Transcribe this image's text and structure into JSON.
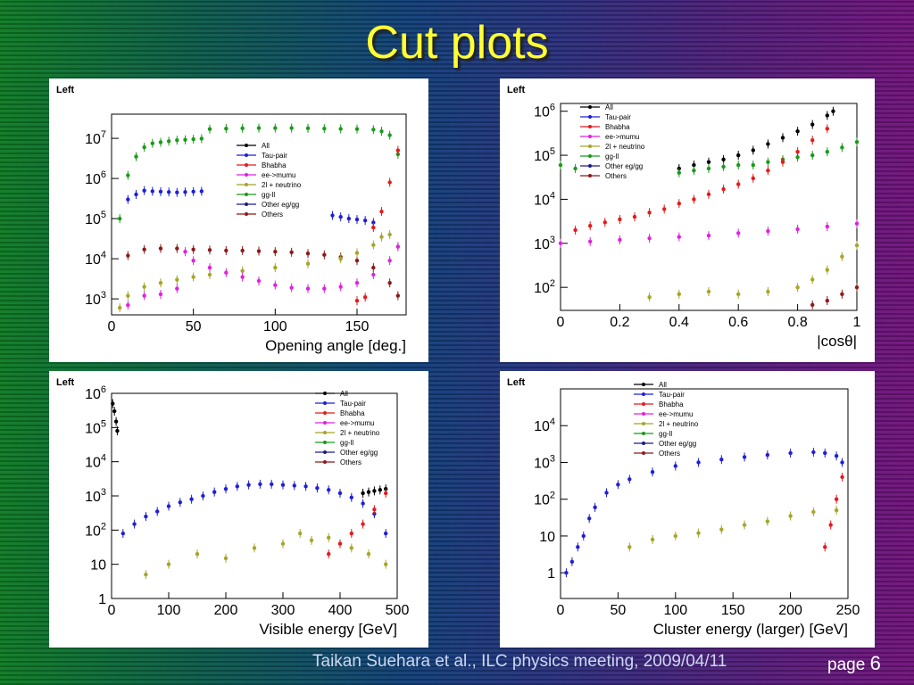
{
  "slide": {
    "title": "Cut plots",
    "footer": "Taikan Suehara et al., ILC physics meeting, 2009/04/11",
    "page_label": "page",
    "page_number": "6"
  },
  "colors": {
    "All": "#000000",
    "Tau-pair": "#1f1fd6",
    "Bhabha": "#e41a1c",
    "ee->mumu": "#e020e0",
    "2l + neutrino": "#a5a52a",
    "gg-ll": "#1a9a1a",
    "Other eg/gg": "#1a1a8a",
    "Others": "#8b1a1a"
  },
  "chart_data": [
    {
      "type": "scatter",
      "panel_label": "Left",
      "xlabel": "Opening angle [deg.]",
      "ylabel": "",
      "xlim": [
        0,
        180
      ],
      "ylim": [
        400,
        40000000
      ],
      "yscale": "log",
      "xticks": [
        "0",
        "50",
        "100",
        "150"
      ],
      "yticks": [
        "10^3",
        "10^4",
        "10^5",
        "10^6",
        "10^7"
      ],
      "legend": [
        "All",
        "Tau-pair",
        "Bhabha",
        "ee->mumu",
        "2l + neutrino",
        "gg-ll",
        "Other eg/gg",
        "Others"
      ],
      "legend_position": "top-right",
      "series": [
        {
          "name": "gg-ll",
          "x": [
            5,
            10,
            15,
            20,
            25,
            30,
            35,
            40,
            45,
            50,
            55,
            60,
            70,
            80,
            90,
            100,
            110,
            120,
            130,
            140,
            150,
            160,
            165,
            170,
            175
          ],
          "y": [
            100000,
            1200000,
            3500000,
            6000000,
            7500000,
            8000000,
            8500000,
            9000000,
            9200000,
            9500000,
            9800000,
            17000000,
            17500000,
            17800000,
            18000000,
            18000000,
            18000000,
            17800000,
            17500000,
            17200000,
            17000000,
            16500000,
            15000000,
            12000000,
            4000000
          ]
        },
        {
          "name": "Tau-pair",
          "x": [
            10,
            15,
            20,
            25,
            30,
            35,
            40,
            45,
            50,
            55,
            135,
            140,
            145,
            150,
            155,
            160
          ],
          "y": [
            300000,
            400000,
            500000,
            480000,
            470000,
            460000,
            450000,
            460000,
            470000,
            480000,
            120000,
            110000,
            100000,
            95000,
            90000,
            80000
          ]
        },
        {
          "name": "Others",
          "x": [
            10,
            20,
            30,
            40,
            50,
            60,
            70,
            80,
            90,
            100,
            110,
            120,
            130,
            140,
            150,
            160,
            170,
            175
          ],
          "y": [
            12000,
            17000,
            18000,
            18000,
            17000,
            16500,
            16000,
            16000,
            15500,
            15000,
            14500,
            13500,
            12500,
            11000,
            9000,
            6000,
            2500,
            1200
          ]
        },
        {
          "name": "2l + neutrino",
          "x": [
            5,
            10,
            20,
            30,
            40,
            50,
            60,
            80,
            100,
            120,
            140,
            150,
            160,
            165,
            170,
            175
          ],
          "y": [
            600,
            1200,
            2000,
            2500,
            3000,
            3500,
            4000,
            5000,
            6000,
            7500,
            10000,
            14000,
            22000,
            35000,
            40000,
            20000
          ]
        },
        {
          "name": "ee->mumu",
          "x": [
            10,
            20,
            30,
            40,
            45,
            50,
            60,
            70,
            80,
            90,
            100,
            110,
            120,
            130,
            140,
            150,
            160,
            170,
            175
          ],
          "y": [
            700,
            1200,
            1300,
            1800,
            15000,
            9000,
            6000,
            4500,
            3500,
            2800,
            2200,
            1900,
            1800,
            1800,
            2000,
            2500,
            4000,
            9000,
            20000
          ]
        },
        {
          "name": "Bhabha",
          "x": [
            150,
            155,
            160,
            165,
            170,
            175
          ],
          "y": [
            900,
            1100,
            60000,
            150000,
            800000,
            5000000
          ]
        }
      ]
    },
    {
      "type": "scatter",
      "panel_label": "Left",
      "xlabel": "|cosθ|",
      "ylabel": "",
      "xlim": [
        0,
        1
      ],
      "ylim": [
        30,
        1500000
      ],
      "yscale": "log",
      "xticks": [
        "0",
        "0.2",
        "0.4",
        "0.6",
        "0.8",
        "1"
      ],
      "yticks": [
        "10^2",
        "10^3",
        "10^4",
        "10^5",
        "10^6"
      ],
      "legend": [
        "All",
        "Tau-pair",
        "Bhabha",
        "ee->mumu",
        "2l + neutrino",
        "gg-ll",
        "Other eg/gg",
        "Others"
      ],
      "legend_position": "top-left",
      "series": [
        {
          "name": "All",
          "x": [
            0.4,
            0.45,
            0.5,
            0.55,
            0.6,
            0.65,
            0.7,
            0.75,
            0.8,
            0.85,
            0.9,
            0.92
          ],
          "y": [
            50000,
            60000,
            70000,
            80000,
            100000,
            130000,
            180000,
            250000,
            350000,
            500000,
            800000,
            1000000
          ]
        },
        {
          "name": "gg-ll",
          "x": [
            0.0,
            0.05,
            0.4,
            0.45,
            0.5,
            0.55,
            0.6,
            0.65,
            0.7,
            0.75,
            0.8,
            0.85,
            0.9,
            0.95,
            1.0
          ],
          "y": [
            60000,
            50000,
            40000,
            45000,
            50000,
            55000,
            60000,
            60000,
            70000,
            80000,
            90000,
            100000,
            120000,
            150000,
            200000
          ]
        },
        {
          "name": "Bhabha",
          "x": [
            0.05,
            0.1,
            0.15,
            0.2,
            0.25,
            0.3,
            0.35,
            0.4,
            0.45,
            0.5,
            0.55,
            0.6,
            0.65,
            0.7,
            0.75,
            0.8,
            0.85,
            0.9
          ],
          "y": [
            2000,
            2500,
            3000,
            3500,
            4000,
            5000,
            6000,
            8000,
            10000,
            13000,
            17000,
            22000,
            30000,
            45000,
            70000,
            120000,
            220000,
            400000
          ]
        },
        {
          "name": "ee->mumu",
          "x": [
            0.0,
            0.1,
            0.2,
            0.3,
            0.4,
            0.5,
            0.6,
            0.7,
            0.8,
            0.9,
            1.0
          ],
          "y": [
            1000,
            1100,
            1200,
            1300,
            1400,
            1500,
            1700,
            1900,
            2100,
            2400,
            2800
          ]
        },
        {
          "name": "2l + neutrino",
          "x": [
            0.3,
            0.4,
            0.5,
            0.6,
            0.7,
            0.8,
            0.85,
            0.9,
            0.95,
            1.0
          ],
          "y": [
            60,
            70,
            80,
            70,
            80,
            100,
            150,
            250,
            500,
            900
          ]
        },
        {
          "name": "Others",
          "x": [
            0.85,
            0.9,
            0.95,
            1.0
          ],
          "y": [
            40,
            50,
            70,
            100
          ]
        }
      ]
    },
    {
      "type": "scatter",
      "panel_label": "Left",
      "xlabel": "Visible energy [GeV]",
      "ylabel": "",
      "xlim": [
        0,
        500
      ],
      "ylim": [
        1,
        1000000
      ],
      "yscale": "log",
      "xticks": [
        "0",
        "100",
        "200",
        "300",
        "400",
        "500"
      ],
      "yticks": [
        "1",
        "10",
        "10^2",
        "10^3",
        "10^4",
        "10^5",
        "10^6"
      ],
      "legend": [
        "All",
        "Tau-pair",
        "Bhabha",
        "ee->mumu",
        "2l + neutrino",
        "gg-ll",
        "Other eg/gg",
        "Others"
      ],
      "legend_position": "top-right",
      "series": [
        {
          "name": "Tau-pair",
          "x": [
            20,
            40,
            60,
            80,
            100,
            120,
            140,
            160,
            180,
            200,
            220,
            240,
            260,
            280,
            300,
            320,
            340,
            360,
            380,
            400,
            420,
            440,
            460,
            480
          ],
          "y": [
            80,
            150,
            250,
            350,
            500,
            650,
            800,
            1000,
            1300,
            1600,
            1900,
            2100,
            2200,
            2200,
            2100,
            2000,
            1900,
            1700,
            1500,
            1200,
            900,
            600,
            300,
            80
          ]
        },
        {
          "name": "All",
          "x": [
            2,
            5,
            8,
            10,
            440,
            450,
            460,
            470,
            480
          ],
          "y": [
            500000,
            300000,
            150000,
            80000,
            1200,
            1300,
            1400,
            1500,
            1600
          ]
        },
        {
          "name": "2l + neutrino",
          "x": [
            60,
            100,
            150,
            200,
            250,
            300,
            330,
            350,
            380,
            400,
            420,
            450,
            480
          ],
          "y": [
            5,
            10,
            20,
            15,
            30,
            40,
            80,
            50,
            60,
            40,
            30,
            20,
            10
          ]
        },
        {
          "name": "Bhabha",
          "x": [
            380,
            400,
            420,
            440,
            460,
            480
          ],
          "y": [
            20,
            40,
            80,
            150,
            400,
            1200
          ]
        }
      ]
    },
    {
      "type": "scatter",
      "panel_label": "Left",
      "xlabel": "Cluster energy (larger) [GeV]",
      "ylabel": "",
      "xlim": [
        0,
        250
      ],
      "ylim": [
        0.2,
        100000
      ],
      "yscale": "log",
      "xticks": [
        "0",
        "50",
        "100",
        "150",
        "200",
        "250"
      ],
      "yticks": [
        "1",
        "10",
        "10^2",
        "10^3",
        "10^4"
      ],
      "legend": [
        "All",
        "Tau-pair",
        "Bhabha",
        "ee->mumu",
        "2l + neutrino",
        "gg-ll",
        "Other eg/gg",
        "Others"
      ],
      "legend_position": "top-left",
      "series": [
        {
          "name": "Tau-pair",
          "x": [
            5,
            10,
            15,
            20,
            25,
            30,
            40,
            50,
            60,
            80,
            100,
            120,
            140,
            160,
            180,
            200,
            220,
            230,
            240,
            245
          ],
          "y": [
            1,
            2,
            5,
            10,
            30,
            60,
            150,
            250,
            350,
            550,
            800,
            1000,
            1200,
            1400,
            1600,
            1800,
            1900,
            1800,
            1500,
            1000
          ]
        },
        {
          "name": "2l + neutrino",
          "x": [
            60,
            80,
            100,
            120,
            140,
            160,
            180,
            200,
            220,
            240
          ],
          "y": [
            5,
            8,
            10,
            12,
            15,
            20,
            25,
            35,
            45,
            50
          ]
        },
        {
          "name": "Bhabha",
          "x": [
            230,
            235,
            240,
            245
          ],
          "y": [
            5,
            20,
            100,
            400
          ]
        }
      ]
    }
  ]
}
